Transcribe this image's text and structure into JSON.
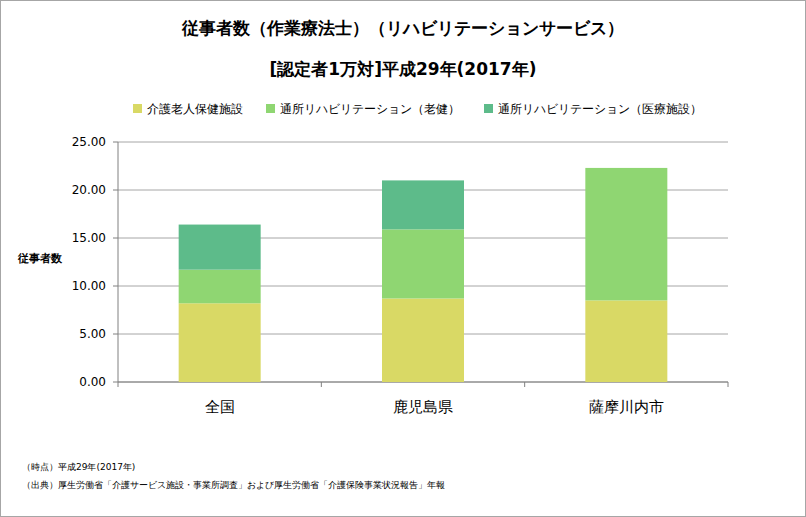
{
  "chart_data": {
    "type": "bar",
    "title": "従事者数（作業療法士）（リハビリテーションサービス）",
    "subtitle": "[認定者1万対]平成29年(2017年)",
    "y_label": "従事者数",
    "categories": [
      "全国",
      "鹿児島県",
      "薩摩川内市"
    ],
    "series": [
      {
        "name": "介護老人保健施設",
        "color": "#d9d965",
        "values": [
          8.2,
          8.7,
          8.5
        ]
      },
      {
        "name": "通所リハビリテーション（老健）",
        "color": "#8fd672",
        "values": [
          3.5,
          7.2,
          13.8
        ]
      },
      {
        "name": "通所リハビリテーション（医療施設）",
        "color": "#5dbb8a",
        "values": [
          4.7,
          5.1,
          0
        ]
      }
    ],
    "stacked": true,
    "grid": true,
    "legend": "top",
    "ylim": [
      0,
      25
    ],
    "yticks": [
      {
        "value": 0,
        "label": "0.00"
      },
      {
        "value": 5,
        "label": "5.00"
      },
      {
        "value": 10,
        "label": "10.00"
      },
      {
        "value": 15,
        "label": "15.00"
      },
      {
        "value": 20,
        "label": "20.00"
      },
      {
        "value": 25,
        "label": "25.00"
      }
    ],
    "notes": [
      "（時点）平成29年(2017年)",
      "（出典）厚生労働省「介護サービス施設・事業所調査」および厚生労働省「介護保険事業状況報告」年報"
    ]
  }
}
